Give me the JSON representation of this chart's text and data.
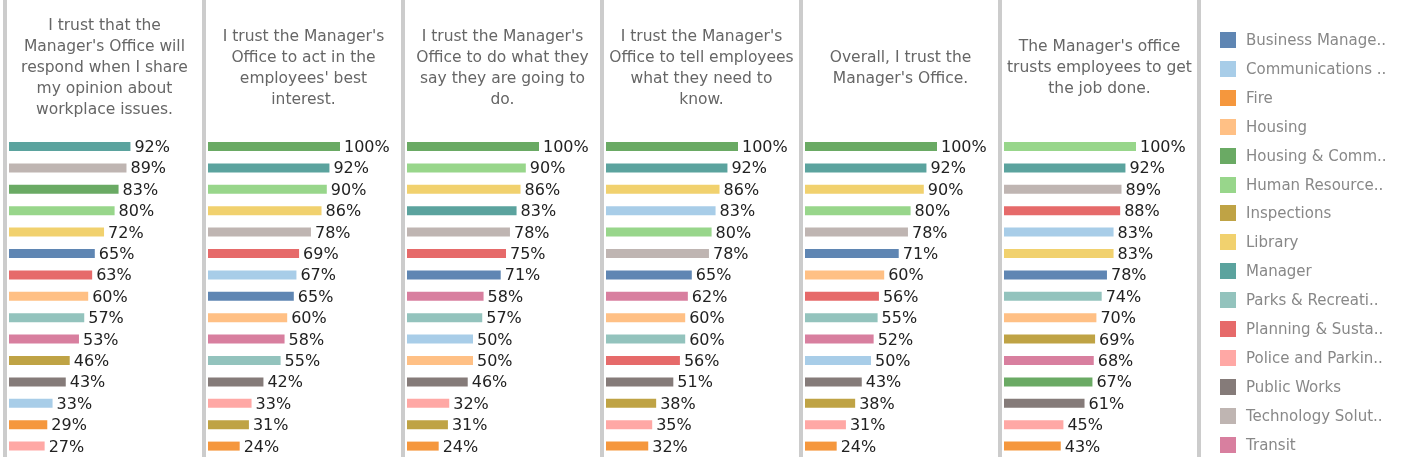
{
  "chart_data": [
    {
      "type": "bar",
      "orientation": "horizontal",
      "title": "I trust that the Manager's Office will respond when I share my opinion about workplace issues.",
      "categories": [
        null,
        null,
        null,
        null,
        null,
        null,
        null,
        null,
        null,
        null,
        null,
        null,
        null,
        null,
        null
      ],
      "values": [
        92,
        89,
        83,
        80,
        72,
        65,
        63,
        60,
        57,
        53,
        46,
        43,
        33,
        29,
        27
      ],
      "colors": [
        "#5ba39e",
        "#bfb5b2",
        "#6aaa64",
        "#98d68b",
        "#f1d16e",
        "#5f86b3",
        "#e66a6a",
        "#ffc085",
        "#93c3bd",
        "#d87f9f",
        "#bfa345",
        "#857b79",
        "#a8cde8",
        "#f5973d",
        "#ffa8a5"
      ],
      "value_labels": [
        "92%",
        "89%",
        "83%",
        "80%",
        "72%",
        "65%",
        "63%",
        "60%",
        "57%",
        "53%",
        "46%",
        "43%",
        "33%",
        "29%",
        "27%"
      ]
    },
    {
      "type": "bar",
      "orientation": "horizontal",
      "title": "I trust the Manager's Office to act in the employees' best interest.",
      "categories": [
        null,
        null,
        null,
        null,
        null,
        null,
        null,
        null,
        null,
        null,
        null,
        null,
        null,
        null,
        null
      ],
      "values": [
        100,
        92,
        90,
        86,
        78,
        69,
        67,
        65,
        60,
        58,
        55,
        42,
        33,
        31,
        24
      ],
      "colors": [
        "#6aaa64",
        "#5ba39e",
        "#98d68b",
        "#f1d16e",
        "#bfb5b2",
        "#e66a6a",
        "#a8cde8",
        "#5f86b3",
        "#ffc085",
        "#d87f9f",
        "#93c3bd",
        "#857b79",
        "#ffa8a5",
        "#bfa345",
        "#f5973d"
      ],
      "value_labels": [
        "100%",
        "92%",
        "90%",
        "86%",
        "78%",
        "69%",
        "67%",
        "65%",
        "60%",
        "58%",
        "55%",
        "42%",
        "33%",
        "31%",
        "24%"
      ]
    },
    {
      "type": "bar",
      "orientation": "horizontal",
      "title": "I trust the Manager's Office to do what they say they are going to do.",
      "categories": [
        null,
        null,
        null,
        null,
        null,
        null,
        null,
        null,
        null,
        null,
        null,
        null,
        null,
        null,
        null
      ],
      "values": [
        100,
        90,
        86,
        83,
        78,
        75,
        71,
        58,
        57,
        50,
        50,
        46,
        32,
        31,
        24
      ],
      "colors": [
        "#6aaa64",
        "#98d68b",
        "#f1d16e",
        "#5ba39e",
        "#bfb5b2",
        "#e66a6a",
        "#5f86b3",
        "#d87f9f",
        "#93c3bd",
        "#a8cde8",
        "#ffc085",
        "#857b79",
        "#ffa8a5",
        "#bfa345",
        "#f5973d"
      ],
      "value_labels": [
        "100%",
        "90%",
        "86%",
        "83%",
        "78%",
        "75%",
        "71%",
        "58%",
        "57%",
        "50%",
        "50%",
        "46%",
        "32%",
        "31%",
        "24%"
      ]
    },
    {
      "type": "bar",
      "orientation": "horizontal",
      "title": "I trust the Manager's Office to tell employees what they need to know.",
      "categories": [
        null,
        null,
        null,
        null,
        null,
        null,
        null,
        null,
        null,
        null,
        null,
        null,
        null,
        null,
        null
      ],
      "values": [
        100,
        92,
        86,
        83,
        80,
        78,
        65,
        62,
        60,
        60,
        56,
        51,
        38,
        35,
        32
      ],
      "colors": [
        "#6aaa64",
        "#5ba39e",
        "#f1d16e",
        "#a8cde8",
        "#98d68b",
        "#bfb5b2",
        "#5f86b3",
        "#d87f9f",
        "#ffc085",
        "#93c3bd",
        "#e66a6a",
        "#857b79",
        "#bfa345",
        "#ffa8a5",
        "#f5973d"
      ],
      "value_labels": [
        "100%",
        "92%",
        "86%",
        "83%",
        "80%",
        "78%",
        "65%",
        "62%",
        "60%",
        "60%",
        "56%",
        "51%",
        "38%",
        "35%",
        "32%"
      ]
    },
    {
      "type": "bar",
      "orientation": "horizontal",
      "title": "Overall, I trust the Manager's Office.",
      "categories": [
        null,
        null,
        null,
        null,
        null,
        null,
        null,
        null,
        null,
        null,
        null,
        null,
        null,
        null,
        null
      ],
      "values": [
        100,
        92,
        90,
        80,
        78,
        71,
        60,
        56,
        55,
        52,
        50,
        43,
        38,
        31,
        24
      ],
      "colors": [
        "#6aaa64",
        "#5ba39e",
        "#f1d16e",
        "#98d68b",
        "#bfb5b2",
        "#5f86b3",
        "#ffc085",
        "#e66a6a",
        "#93c3bd",
        "#d87f9f",
        "#a8cde8",
        "#857b79",
        "#bfa345",
        "#ffa8a5",
        "#f5973d"
      ],
      "value_labels": [
        "100%",
        "92%",
        "90%",
        "80%",
        "78%",
        "71%",
        "60%",
        "56%",
        "55%",
        "52%",
        "50%",
        "43%",
        "38%",
        "31%",
        "24%"
      ]
    },
    {
      "type": "bar",
      "orientation": "horizontal",
      "title": "The Manager's office trusts employees to get the job done.",
      "categories": [
        null,
        null,
        null,
        null,
        null,
        null,
        null,
        null,
        null,
        null,
        null,
        null,
        null,
        null,
        null
      ],
      "values": [
        100,
        92,
        89,
        88,
        83,
        83,
        78,
        74,
        70,
        69,
        68,
        67,
        61,
        45,
        43
      ],
      "colors": [
        "#98d68b",
        "#5ba39e",
        "#bfb5b2",
        "#e66a6a",
        "#a8cde8",
        "#f1d16e",
        "#5f86b3",
        "#93c3bd",
        "#ffc085",
        "#bfa345",
        "#d87f9f",
        "#6aaa64",
        "#857b79",
        "#ffa8a5",
        "#f5973d"
      ],
      "value_labels": [
        "100%",
        "92%",
        "89%",
        "88%",
        "83%",
        "83%",
        "78%",
        "74%",
        "70%",
        "69%",
        "68%",
        "67%",
        "61%",
        "45%",
        "43%"
      ]
    },
    {
      "type": "other",
      "categories": [
        "Business Manage..",
        "Communications ..",
        "Fire",
        "Housing",
        "Housing & Comm..",
        "Human Resource..",
        "Inspections",
        "Library",
        "Manager",
        "Parks & Recreati..",
        "Planning & Susta..",
        "Police and Parkin..",
        "Public Works",
        "Technology Solut..",
        "Transit"
      ],
      "colors": [
        "#5f86b3",
        "#a8cde8",
        "#f5973d",
        "#ffc085",
        "#6aaa64",
        "#98d68b",
        "#bfa345",
        "#f1d16e",
        "#5ba39e",
        "#93c3bd",
        "#e66a6a",
        "#ffa8a5",
        "#857b79",
        "#bfb5b2",
        "#d87f9f"
      ]
    }
  ]
}
